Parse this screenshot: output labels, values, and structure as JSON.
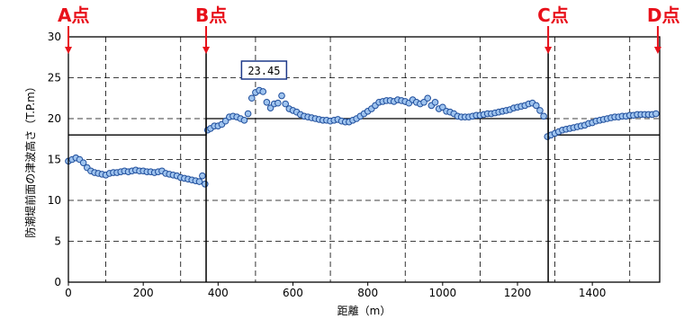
{
  "chart_data": {
    "type": "scatter",
    "xlabel": "距離（m）",
    "ylabel": "防潮堤前面の津波高さ（T.P.m）",
    "xlim": [
      0,
      1580
    ],
    "ylim": [
      0,
      30
    ],
    "xticks": [
      0,
      200,
      400,
      600,
      800,
      1000,
      1200,
      1400
    ],
    "yticks": [
      0,
      5,
      10,
      15,
      20,
      25,
      30
    ],
    "grid": true,
    "colors": {
      "marker_fill": "#9ec3ee",
      "marker_stroke": "#1f4e9c",
      "point_labels": "#e8101a",
      "lines": "#000000"
    },
    "point_labels": [
      {
        "text": "A点",
        "x": 0
      },
      {
        "text": "B点",
        "x": 368
      },
      {
        "text": "C点",
        "x": 1282
      },
      {
        "text": "D点",
        "x": 1575
      }
    ],
    "max_annotation": {
      "text": "23.45",
      "x": 530,
      "y": 23.45
    },
    "step_line": [
      [
        0,
        18
      ],
      [
        368,
        18
      ],
      [
        368,
        20
      ],
      [
        1282,
        20
      ],
      [
        1282,
        18
      ],
      [
        1580,
        18
      ]
    ],
    "series": [
      {
        "x": [
          0,
          10,
          20,
          30,
          40,
          50,
          60,
          70,
          80,
          90,
          100,
          110,
          120,
          130,
          140,
          150,
          160,
          170,
          180,
          190,
          200,
          210,
          220,
          230,
          240,
          250,
          260,
          270,
          280,
          290,
          300,
          310,
          320,
          330,
          340,
          350,
          358,
          365,
          372,
          380,
          390,
          400,
          410,
          420,
          430,
          440,
          450,
          460,
          470,
          480,
          490,
          500,
          510,
          520,
          530,
          540,
          550,
          560,
          570,
          580,
          590,
          600,
          610,
          620,
          630,
          640,
          650,
          660,
          670,
          680,
          690,
          700,
          710,
          720,
          730,
          740,
          750,
          760,
          770,
          780,
          790,
          800,
          810,
          820,
          830,
          840,
          850,
          860,
          870,
          880,
          890,
          900,
          910,
          920,
          930,
          940,
          950,
          960,
          970,
          980,
          990,
          1000,
          1010,
          1020,
          1030,
          1040,
          1050,
          1060,
          1070,
          1080,
          1090,
          1100,
          1110,
          1120,
          1130,
          1140,
          1150,
          1160,
          1170,
          1180,
          1190,
          1200,
          1210,
          1220,
          1230,
          1240,
          1250,
          1260,
          1270,
          1280,
          1290,
          1300,
          1310,
          1320,
          1330,
          1340,
          1350,
          1360,
          1370,
          1380,
          1390,
          1400,
          1410,
          1420,
          1430,
          1440,
          1450,
          1460,
          1470,
          1480,
          1490,
          1500,
          1510,
          1520,
          1530,
          1540,
          1550,
          1560,
          1570
        ],
        "y": [
          14.8,
          15.0,
          15.2,
          15.0,
          14.6,
          14.0,
          13.6,
          13.4,
          13.3,
          13.2,
          13.1,
          13.3,
          13.4,
          13.4,
          13.5,
          13.6,
          13.5,
          13.6,
          13.7,
          13.6,
          13.6,
          13.5,
          13.5,
          13.4,
          13.5,
          13.6,
          13.3,
          13.2,
          13.1,
          13.0,
          12.8,
          12.7,
          12.6,
          12.5,
          12.4,
          12.3,
          13.0,
          12.0,
          18.6,
          18.8,
          19.1,
          19.1,
          19.3,
          19.7,
          20.2,
          20.3,
          20.2,
          20.0,
          19.8,
          20.6,
          22.5,
          23.2,
          23.45,
          23.3,
          22.0,
          21.3,
          21.8,
          21.9,
          22.8,
          21.8,
          21.2,
          21.0,
          20.8,
          20.5,
          20.3,
          20.2,
          20.1,
          20.0,
          19.9,
          19.8,
          19.8,
          19.7,
          19.8,
          19.9,
          19.7,
          19.6,
          19.6,
          19.8,
          20.0,
          20.3,
          20.6,
          20.9,
          21.2,
          21.6,
          22.0,
          22.1,
          22.2,
          22.2,
          22.1,
          22.3,
          22.2,
          22.1,
          21.9,
          22.3,
          22.0,
          21.8,
          22.0,
          22.5,
          21.6,
          22.0,
          21.2,
          21.4,
          20.9,
          20.8,
          20.6,
          20.3,
          20.2,
          20.2,
          20.2,
          20.3,
          20.4,
          20.4,
          20.5,
          20.6,
          20.6,
          20.7,
          20.8,
          20.9,
          21.0,
          21.1,
          21.3,
          21.4,
          21.5,
          21.6,
          21.8,
          21.9,
          21.6,
          21.0,
          20.3,
          17.8,
          18.0,
          18.2,
          18.4,
          18.6,
          18.7,
          18.8,
          18.9,
          19.0,
          19.1,
          19.2,
          19.4,
          19.5,
          19.7,
          19.8,
          19.9,
          20.0,
          20.1,
          20.2,
          20.2,
          20.3,
          20.3,
          20.4,
          20.4,
          20.5,
          20.5,
          20.5,
          20.5,
          20.5,
          20.6
        ]
      }
    ]
  }
}
